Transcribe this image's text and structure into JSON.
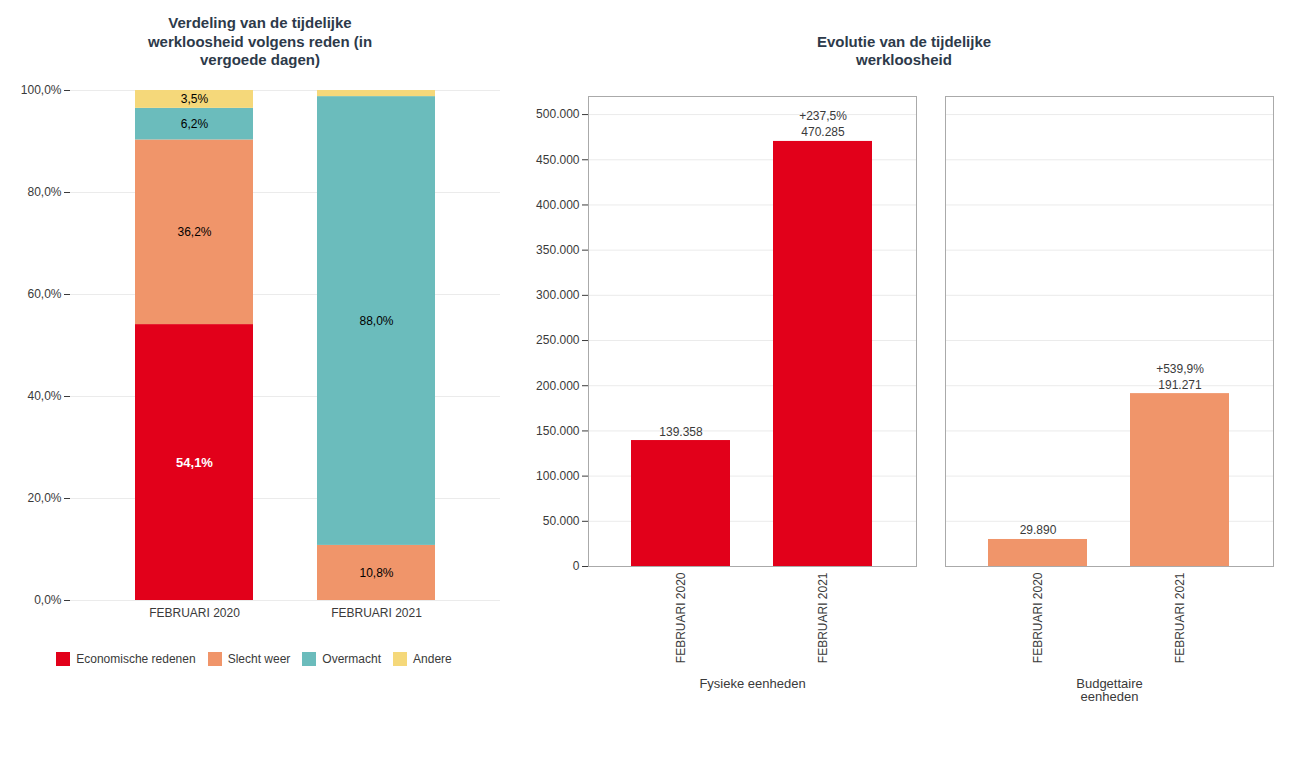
{
  "chart_data": [
    {
      "type": "bar",
      "stacked": true,
      "title": "Verdeling van de tijdelijke\nwerkloosheid volgens reden (in\nvergoede dagen)",
      "categories": [
        "FEBRUARI 2020",
        "FEBRUARI 2021"
      ],
      "series": [
        {
          "name": "Economische redenen",
          "color": "#e2001a",
          "values": [
            54.1,
            0.0
          ],
          "value_labels": [
            "54,1%",
            null
          ]
        },
        {
          "name": "Slecht weer",
          "color": "#f0956a",
          "values": [
            36.2,
            10.8
          ],
          "value_labels": [
            "36,2%",
            "10,8%"
          ]
        },
        {
          "name": "Overmacht",
          "color": "#6bbcbc",
          "values": [
            6.2,
            88.0
          ],
          "value_labels": [
            "6,2%",
            "88,0%"
          ]
        },
        {
          "name": "Andere",
          "color": "#f5d87a",
          "values": [
            3.5,
            1.2
          ],
          "value_labels": [
            "3,5%",
            null
          ]
        }
      ],
      "ylim": [
        0,
        100
      ],
      "yticks": [
        {
          "value": 0,
          "label": "0,0%"
        },
        {
          "value": 20,
          "label": "20,0%"
        },
        {
          "value": 40,
          "label": "40,0%"
        },
        {
          "value": 60,
          "label": "60,0%"
        },
        {
          "value": 80,
          "label": "80,0%"
        },
        {
          "value": 100,
          "label": "100,0%"
        }
      ],
      "grid": true,
      "legend": "bottom",
      "data_labels": true
    },
    {
      "type": "bar",
      "title": "Evolutie van de tijdelijke\nwerkloosheid",
      "groups": [
        {
          "name": "Fysieke eenheden",
          "categories": [
            "FEBRUARI 2020",
            "FEBRUARI 2021"
          ],
          "values": [
            139358,
            470285
          ],
          "value_labels": [
            "139.358",
            "470.285"
          ],
          "annotations": [
            null,
            "+237,5%"
          ],
          "colors": [
            "#e2001a",
            "#e2001a"
          ]
        },
        {
          "name": "Budgettaire\neenheden",
          "categories": [
            "FEBRUARI 2020",
            "FEBRUARI 2021"
          ],
          "values": [
            29890,
            191271
          ],
          "value_labels": [
            "29.890",
            "191.271"
          ],
          "annotations": [
            null,
            "+539,9%"
          ],
          "colors": [
            "#f0956a",
            "#f0956a"
          ]
        }
      ],
      "ylim": [
        0,
        520000
      ],
      "yticks": [
        0,
        {
          "value": 50000,
          "label": "50.000"
        },
        {
          "value": 100000,
          "label": "100.000"
        },
        {
          "value": 150000,
          "label": "150.000"
        },
        {
          "value": 200000,
          "label": "200.000"
        },
        {
          "value": 250000,
          "label": "250.000"
        },
        {
          "value": 300000,
          "label": "300.000"
        },
        {
          "value": 350000,
          "label": "350.000"
        },
        {
          "value": 400000,
          "label": "400.000"
        },
        {
          "value": 450000,
          "label": "450.000"
        },
        {
          "value": 500000,
          "label": "500.000"
        }
      ],
      "grid": true,
      "data_labels": true
    }
  ]
}
